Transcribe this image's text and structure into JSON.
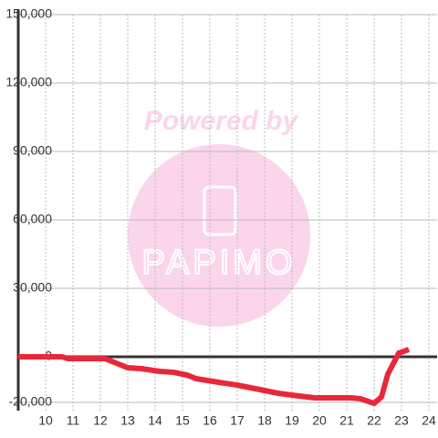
{
  "chart_data": {
    "type": "line",
    "watermark": {
      "top": "Powered by",
      "logo": "PAPIMO"
    },
    "x": [
      9,
      10.6,
      10.83,
      12.17,
      12.5,
      13,
      13.5,
      14.17,
      14.67,
      15.17,
      15.5,
      16.33,
      17,
      17.5,
      18,
      18.5,
      19,
      19.83,
      21.17,
      21.5,
      22,
      22.27,
      22.5,
      22.9,
      23.27
    ],
    "series": [
      {
        "color": "#e8283a",
        "values": [
          0,
          0,
          -800,
          -800,
          -2400,
          -4800,
          -5200,
          -6400,
          -6800,
          -8000,
          -9600,
          -11200,
          -12400,
          -13600,
          -14800,
          -16000,
          -16800,
          -18000,
          -18000,
          -18400,
          -20400,
          -17600,
          -7600,
          1600,
          3200
        ]
      }
    ],
    "xlim": [
      9,
      24.3
    ],
    "xticks": [
      10,
      11,
      12,
      13,
      14,
      15,
      16,
      17,
      18,
      19,
      20,
      21,
      22,
      23,
      24
    ],
    "ylim": [
      -20000,
      150000
    ],
    "yticks": [
      {
        "value": -20000,
        "label": "-20,000"
      },
      0,
      {
        "value": 30000,
        "label": "30,000"
      },
      {
        "value": 60000,
        "label": "60,000"
      },
      {
        "value": 90000,
        "label": "90,000"
      },
      {
        "value": 120000,
        "label": "120,000"
      },
      {
        "value": 150000,
        "label": "150,000"
      }
    ],
    "grid": true
  }
}
